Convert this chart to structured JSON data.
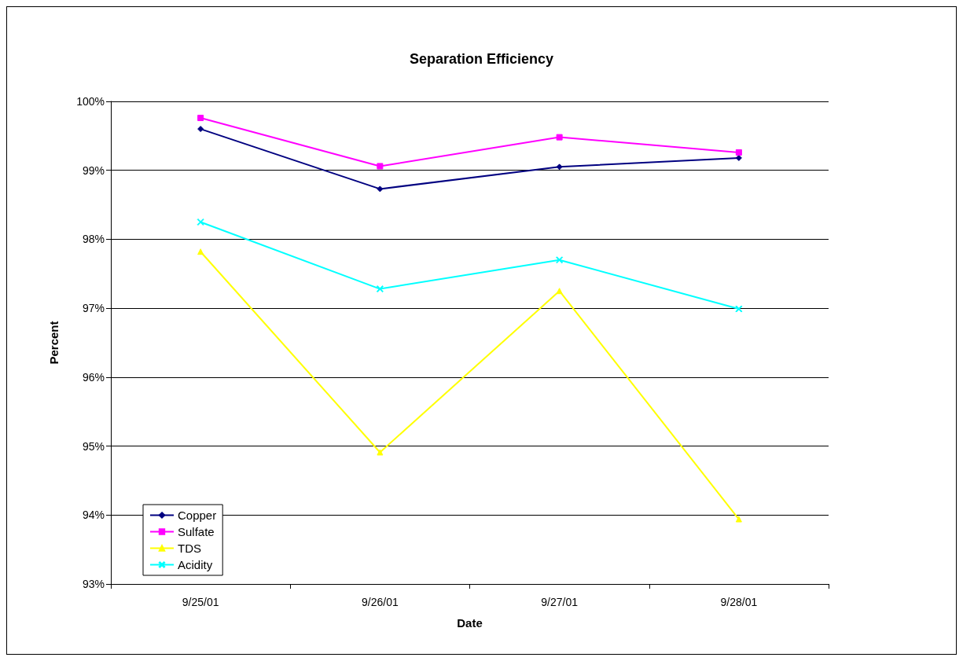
{
  "chart_data": {
    "type": "line",
    "title": "Separation Efficiency",
    "xlabel": "Date",
    "ylabel": "Percent",
    "categories": [
      "9/25/01",
      "9/26/01",
      "9/27/01",
      "9/28/01"
    ],
    "series": [
      {
        "name": "Copper",
        "color": "#000080",
        "marker": "diamond",
        "values": [
          99.6,
          98.73,
          99.05,
          99.18
        ]
      },
      {
        "name": "Sulfate",
        "color": "#ff00ff",
        "marker": "square",
        "values": [
          99.76,
          99.06,
          99.48,
          99.26
        ]
      },
      {
        "name": "TDS",
        "color": "#ffff00",
        "marker": "triangle",
        "values": [
          97.82,
          94.91,
          97.25,
          93.94
        ]
      },
      {
        "name": "Acidity",
        "color": "#00ffff",
        "marker": "cross",
        "values": [
          98.25,
          97.28,
          97.7,
          96.99
        ]
      }
    ],
    "ylim": [
      93,
      100
    ],
    "yticks": [
      {
        "value": 93,
        "label": "93%"
      },
      {
        "value": 94,
        "label": "94%"
      },
      {
        "value": 95,
        "label": "95%"
      },
      {
        "value": 96,
        "label": "96%"
      },
      {
        "value": 97,
        "label": "97%"
      },
      {
        "value": 98,
        "label": "98%"
      },
      {
        "value": 99,
        "label": "99%"
      },
      {
        "value": 100,
        "label": "100%"
      }
    ],
    "grid": "y",
    "legend": "bottom left",
    "line_style": "solid"
  }
}
